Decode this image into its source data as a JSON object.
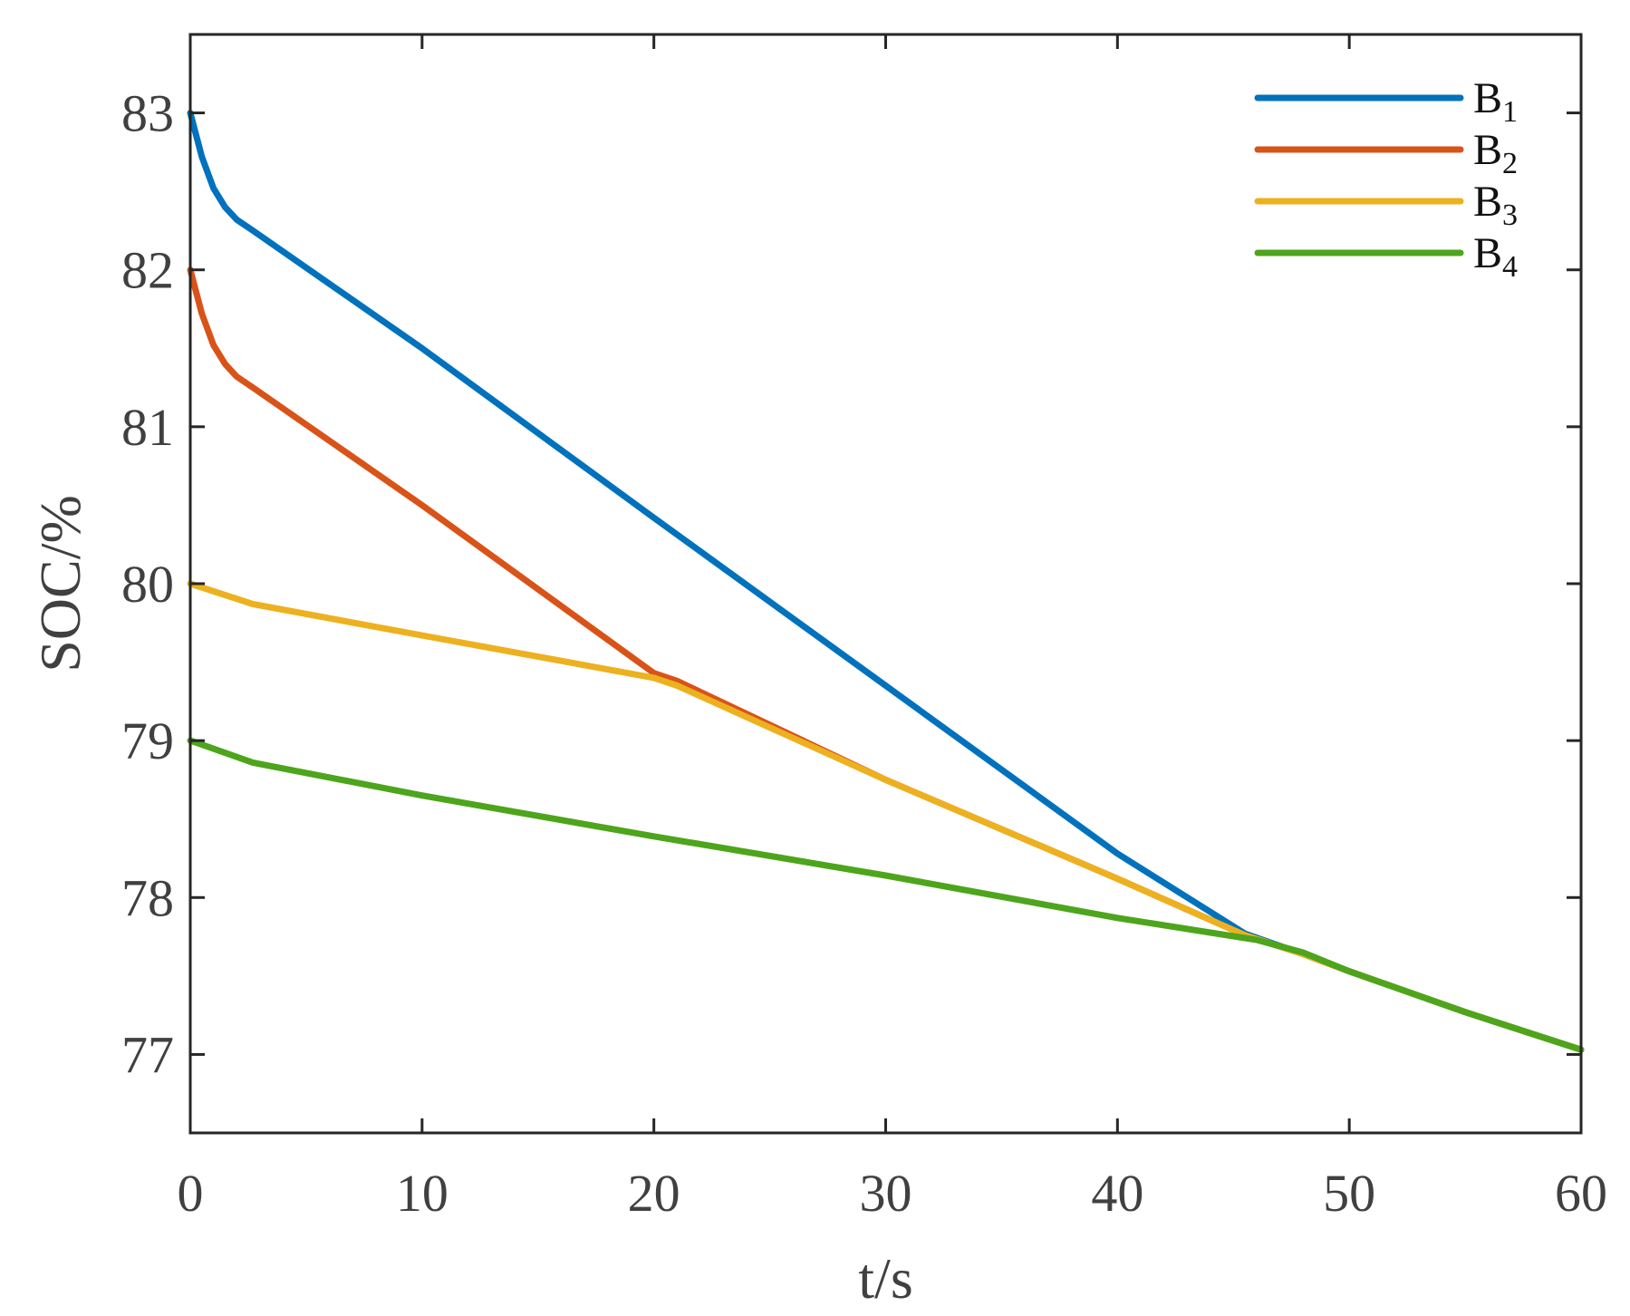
{
  "chart_data": {
    "type": "line",
    "xlabel": "t/s",
    "ylabel": "SOC/%",
    "xlim": [
      0,
      60
    ],
    "ylim": [
      76.5,
      83.5
    ],
    "xticks": [
      "0",
      "10",
      "20",
      "30",
      "40",
      "50",
      "60"
    ],
    "yticks": [
      "77",
      "78",
      "79",
      "80",
      "81",
      "82",
      "83"
    ],
    "grid": false,
    "legend_position": "top-right",
    "series": [
      {
        "name": "B",
        "subscript": "1",
        "color": "#0072BD",
        "x": [
          0,
          0.5,
          1,
          1.5,
          2,
          2.7,
          10,
          20,
          30,
          40,
          45.5,
          48,
          50,
          55,
          60
        ],
        "y": [
          83.0,
          82.72,
          82.52,
          82.4,
          82.32,
          82.25,
          81.5,
          80.42,
          79.35,
          78.28,
          77.77,
          77.64,
          77.53,
          77.27,
          77.03
        ]
      },
      {
        "name": "B",
        "subscript": "2",
        "color": "#D95319",
        "x": [
          0,
          0.5,
          1,
          1.5,
          2,
          2.7,
          10,
          20,
          21,
          30,
          40,
          45.5,
          48,
          50,
          55,
          60
        ],
        "y": [
          82.0,
          81.72,
          81.52,
          81.4,
          81.32,
          81.25,
          80.5,
          79.43,
          79.38,
          78.75,
          78.12,
          77.76,
          77.64,
          77.53,
          77.27,
          77.03
        ]
      },
      {
        "name": "B",
        "subscript": "3",
        "color": "#EDB120",
        "x": [
          0,
          2.7,
          10,
          20,
          21,
          30,
          40,
          45.5,
          48,
          50,
          55,
          60
        ],
        "y": [
          80.0,
          79.87,
          79.67,
          79.4,
          79.35,
          78.75,
          78.12,
          77.76,
          77.64,
          77.53,
          77.27,
          77.03
        ]
      },
      {
        "name": "B",
        "subscript": "4",
        "color": "#4DA51C",
        "x": [
          0,
          2.7,
          10,
          20,
          30,
          40,
          46,
          48,
          50,
          55,
          60
        ],
        "y": [
          79.0,
          78.86,
          78.65,
          78.39,
          78.14,
          77.87,
          77.73,
          77.65,
          77.53,
          77.27,
          77.03
        ]
      }
    ]
  }
}
